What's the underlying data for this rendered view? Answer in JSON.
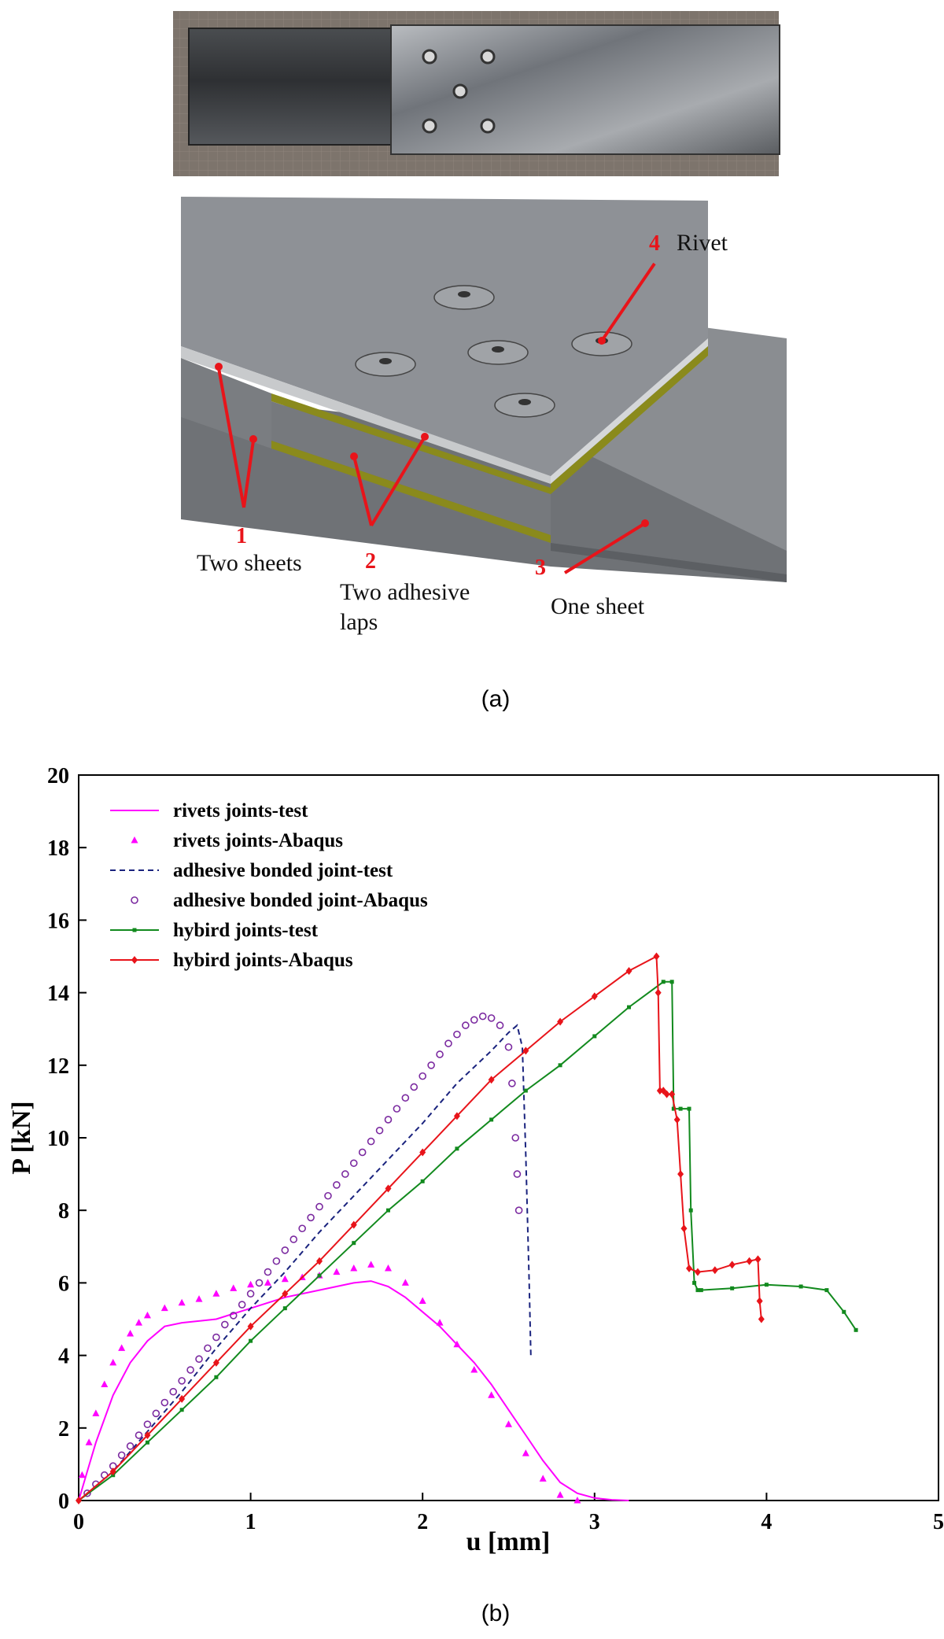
{
  "panel_a": {
    "caption": "(a)",
    "callouts": [
      {
        "num": "1",
        "label": "Two sheets"
      },
      {
        "num": "2",
        "label_line1": "Two adhesive",
        "label_line2": "laps"
      },
      {
        "num": "3",
        "label": "One sheet"
      },
      {
        "num": "4",
        "label": "Rivet"
      }
    ],
    "colors": {
      "callout": "#e8141a",
      "metal": "#8e9196",
      "adhesive": "#8a8a1c"
    }
  },
  "panel_b": {
    "caption": "(b)"
  },
  "chart_data": {
    "type": "line",
    "title": "",
    "xlabel": "u [mm]",
    "ylabel": "P [kN]",
    "xlim": [
      0,
      5
    ],
    "ylim": [
      0,
      20
    ],
    "xticks": [
      0,
      1,
      2,
      3,
      4,
      5
    ],
    "yticks": [
      0,
      2,
      4,
      6,
      8,
      10,
      12,
      14,
      16,
      18,
      20
    ],
    "grid": false,
    "legend_position": "top-left",
    "series": [
      {
        "name": "rivets joints-test",
        "color": "#ff00ff",
        "style": "solid",
        "marker": "none",
        "x": [
          0,
          0.05,
          0.1,
          0.2,
          0.3,
          0.4,
          0.5,
          0.6,
          0.8,
          1.0,
          1.2,
          1.4,
          1.6,
          1.7,
          1.8,
          1.9,
          2.0,
          2.1,
          2.2,
          2.3,
          2.4,
          2.5,
          2.6,
          2.7,
          2.8,
          2.9,
          3.0,
          3.1,
          3.2
        ],
        "y": [
          0,
          0.8,
          1.6,
          2.9,
          3.8,
          4.4,
          4.8,
          4.9,
          5.0,
          5.3,
          5.6,
          5.8,
          6.0,
          6.05,
          5.9,
          5.6,
          5.2,
          4.8,
          4.3,
          3.8,
          3.2,
          2.5,
          1.8,
          1.1,
          0.5,
          0.2,
          0.07,
          0.02,
          0
        ]
      },
      {
        "name": "rivets joints-Abaqus",
        "color": "#ff00ff",
        "style": "none",
        "marker": "triangle",
        "x": [
          0.02,
          0.06,
          0.1,
          0.15,
          0.2,
          0.25,
          0.3,
          0.35,
          0.4,
          0.5,
          0.6,
          0.7,
          0.8,
          0.9,
          1.0,
          1.1,
          1.2,
          1.3,
          1.4,
          1.5,
          1.6,
          1.7,
          1.8,
          1.9,
          2.0,
          2.1,
          2.2,
          2.3,
          2.4,
          2.5,
          2.6,
          2.7,
          2.8,
          2.9
        ],
        "y": [
          0.7,
          1.6,
          2.4,
          3.2,
          3.8,
          4.2,
          4.6,
          4.9,
          5.1,
          5.3,
          5.45,
          5.55,
          5.7,
          5.85,
          5.95,
          6.0,
          6.1,
          6.15,
          6.2,
          6.3,
          6.4,
          6.5,
          6.4,
          6.0,
          5.5,
          4.9,
          4.3,
          3.6,
          2.9,
          2.1,
          1.3,
          0.6,
          0.15,
          0
        ]
      },
      {
        "name": "adhesive bonded joint-test",
        "color": "#1a237e",
        "style": "dashed",
        "marker": "none",
        "x": [
          0,
          0.2,
          0.4,
          0.6,
          0.8,
          1.0,
          1.2,
          1.4,
          1.6,
          1.8,
          2.0,
          2.2,
          2.4,
          2.5,
          2.55,
          2.58,
          2.6,
          2.62,
          2.63
        ],
        "y": [
          0,
          0.8,
          1.9,
          3.0,
          4.2,
          5.3,
          6.3,
          7.4,
          8.4,
          9.4,
          10.4,
          11.5,
          12.4,
          12.9,
          13.1,
          12.5,
          9.5,
          6.0,
          3.9
        ]
      },
      {
        "name": "adhesive bonded joint-Abaqus",
        "color": "#7b2aa0",
        "style": "none",
        "marker": "circle",
        "x": [
          0.05,
          0.1,
          0.15,
          0.2,
          0.25,
          0.3,
          0.35,
          0.4,
          0.45,
          0.5,
          0.55,
          0.6,
          0.65,
          0.7,
          0.75,
          0.8,
          0.85,
          0.9,
          0.95,
          1.0,
          1.05,
          1.1,
          1.15,
          1.2,
          1.25,
          1.3,
          1.35,
          1.4,
          1.45,
          1.5,
          1.55,
          1.6,
          1.65,
          1.7,
          1.75,
          1.8,
          1.85,
          1.9,
          1.95,
          2.0,
          2.05,
          2.1,
          2.15,
          2.2,
          2.25,
          2.3,
          2.35,
          2.4,
          2.45,
          2.5,
          2.52,
          2.54,
          2.55,
          2.56
        ],
        "y": [
          0.2,
          0.45,
          0.7,
          0.95,
          1.25,
          1.5,
          1.8,
          2.1,
          2.4,
          2.7,
          3.0,
          3.3,
          3.6,
          3.9,
          4.2,
          4.5,
          4.85,
          5.1,
          5.4,
          5.7,
          6.0,
          6.3,
          6.6,
          6.9,
          7.2,
          7.5,
          7.8,
          8.1,
          8.4,
          8.7,
          9.0,
          9.3,
          9.6,
          9.9,
          10.2,
          10.5,
          10.8,
          11.1,
          11.4,
          11.7,
          12.0,
          12.3,
          12.6,
          12.85,
          13.1,
          13.25,
          13.35,
          13.3,
          13.1,
          12.5,
          11.5,
          10.0,
          9.0,
          8.0
        ]
      },
      {
        "name": "hybird joints-test",
        "color": "#128a1e",
        "style": "solid",
        "marker": "dot",
        "x": [
          0,
          0.2,
          0.4,
          0.6,
          0.8,
          1.0,
          1.2,
          1.4,
          1.6,
          1.8,
          2.0,
          2.2,
          2.4,
          2.6,
          2.8,
          3.0,
          3.2,
          3.4,
          3.45,
          3.46,
          3.5,
          3.55,
          3.56,
          3.58,
          3.6,
          3.62,
          3.8,
          4.0,
          4.2,
          4.35,
          4.45,
          4.52
        ],
        "y": [
          0,
          0.7,
          1.6,
          2.5,
          3.4,
          4.4,
          5.3,
          6.2,
          7.1,
          8.0,
          8.8,
          9.7,
          10.5,
          11.3,
          12.0,
          12.8,
          13.6,
          14.3,
          14.3,
          10.8,
          10.8,
          10.8,
          8.0,
          6.0,
          5.8,
          5.8,
          5.85,
          5.95,
          5.9,
          5.8,
          5.2,
          4.7
        ]
      },
      {
        "name": "hybird joints-Abaqus",
        "color": "#e8141a",
        "style": "solid",
        "marker": "diamond",
        "x": [
          0,
          0.2,
          0.4,
          0.6,
          0.8,
          1.0,
          1.2,
          1.4,
          1.6,
          1.8,
          2.0,
          2.2,
          2.4,
          2.6,
          2.8,
          3.0,
          3.2,
          3.36,
          3.37,
          3.38,
          3.4,
          3.42,
          3.45,
          3.48,
          3.5,
          3.52,
          3.55,
          3.6,
          3.7,
          3.8,
          3.9,
          3.95,
          3.96,
          3.97
        ],
        "y": [
          0,
          0.8,
          1.8,
          2.8,
          3.8,
          4.8,
          5.7,
          6.6,
          7.6,
          8.6,
          9.6,
          10.6,
          11.6,
          12.4,
          13.2,
          13.9,
          14.6,
          15.0,
          14.0,
          11.3,
          11.3,
          11.2,
          11.2,
          10.5,
          9.0,
          7.5,
          6.4,
          6.3,
          6.35,
          6.5,
          6.6,
          6.65,
          5.5,
          5.0
        ]
      }
    ]
  }
}
